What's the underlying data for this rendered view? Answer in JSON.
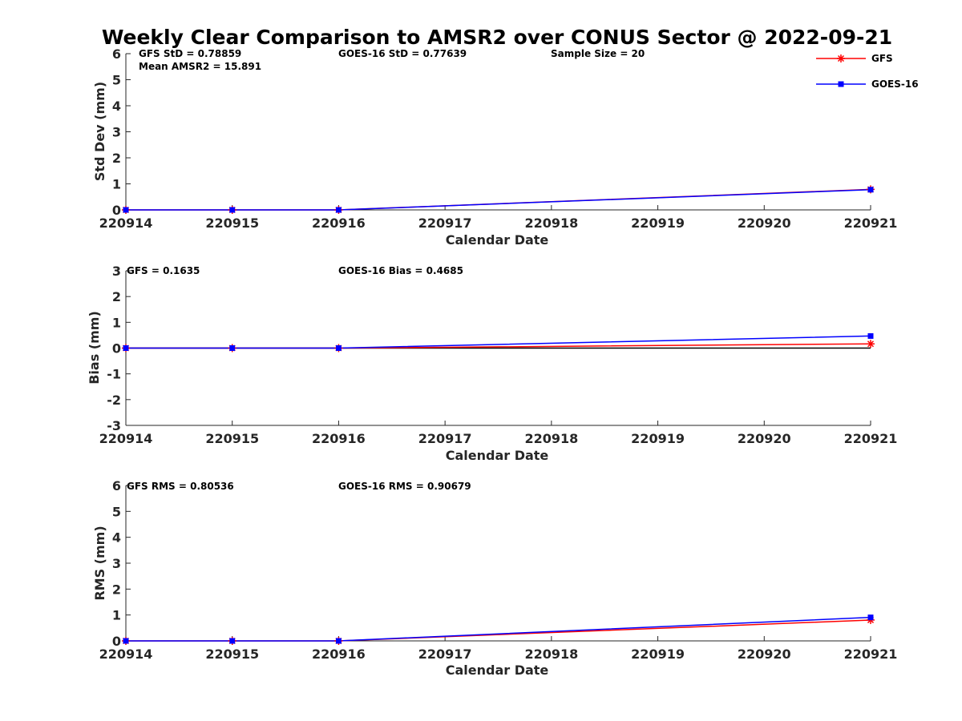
{
  "colors": {
    "gfs": "#ff0000",
    "goes": "#0000ff",
    "axis": "#262626",
    "zero_line": "#000000"
  },
  "legend": {
    "placement": "top-right",
    "entries": [
      {
        "name": "GFS",
        "color": "#ff0000",
        "marker": "asterisk"
      },
      {
        "name": "GOES-16",
        "color": "#0000ff",
        "marker": "square"
      }
    ]
  },
  "chart_data": [
    {
      "type": "line",
      "title": "Weekly Clear Comparison to AMSR2 over CONUS Sector @ 2022-09-21",
      "xlabel": "Calendar Date",
      "ylabel": "Std Dev (mm)",
      "categories": [
        "220914",
        "220915",
        "220916",
        "220917",
        "220918",
        "220919",
        "220920",
        "220921"
      ],
      "xlim": [
        0,
        7
      ],
      "ylim": [
        0,
        6
      ],
      "yticks": [
        0,
        1,
        2,
        3,
        4,
        5,
        6
      ],
      "grid": false,
      "series": [
        {
          "name": "GFS",
          "x": [
            0,
            1,
            2,
            7
          ],
          "values": [
            0,
            0,
            0,
            0.78859
          ]
        },
        {
          "name": "GOES-16",
          "x": [
            0,
            1,
            2,
            7
          ],
          "values": [
            0,
            0,
            0,
            0.77639
          ]
        }
      ],
      "annotations": {
        "left": "GFS StD = 0.78859",
        "left2": "Mean AMSR2 = 15.891",
        "mid": "GOES-16 StD = 0.77639",
        "right": "Sample Size = 20"
      }
    },
    {
      "type": "line",
      "title": "",
      "xlabel": "Calendar Date",
      "ylabel": "Bias (mm)",
      "categories": [
        "220914",
        "220915",
        "220916",
        "220917",
        "220918",
        "220919",
        "220920",
        "220921"
      ],
      "xlim": [
        0,
        7
      ],
      "ylim": [
        -3,
        3
      ],
      "yticks": [
        -3,
        -2,
        -1,
        0,
        1,
        2,
        3
      ],
      "grid": false,
      "zero_line": true,
      "series": [
        {
          "name": "GFS",
          "x": [
            0,
            1,
            2,
            7
          ],
          "values": [
            0,
            0,
            0,
            0.1635
          ]
        },
        {
          "name": "GOES-16",
          "x": [
            0,
            1,
            2,
            7
          ],
          "values": [
            0,
            0,
            0,
            0.4685
          ]
        }
      ],
      "annotations": {
        "left": "GFS = 0.1635",
        "mid": "GOES-16 Bias  = 0.4685"
      }
    },
    {
      "type": "line",
      "title": "",
      "xlabel": "Calendar Date",
      "ylabel": "RMS (mm)",
      "categories": [
        "220914",
        "220915",
        "220916",
        "220917",
        "220918",
        "220919",
        "220920",
        "220921"
      ],
      "xlim": [
        0,
        7
      ],
      "ylim": [
        0,
        6
      ],
      "yticks": [
        0,
        1,
        2,
        3,
        4,
        5,
        6
      ],
      "grid": false,
      "series": [
        {
          "name": "GFS",
          "x": [
            0,
            1,
            2,
            7
          ],
          "values": [
            0,
            0,
            0,
            0.80536
          ]
        },
        {
          "name": "GOES-16",
          "x": [
            0,
            1,
            2,
            7
          ],
          "values": [
            0,
            0,
            0,
            0.90679
          ]
        }
      ],
      "annotations": {
        "left": "GFS RMS = 0.80536",
        "mid": "GOES-16 RMS = 0.90679"
      }
    }
  ]
}
